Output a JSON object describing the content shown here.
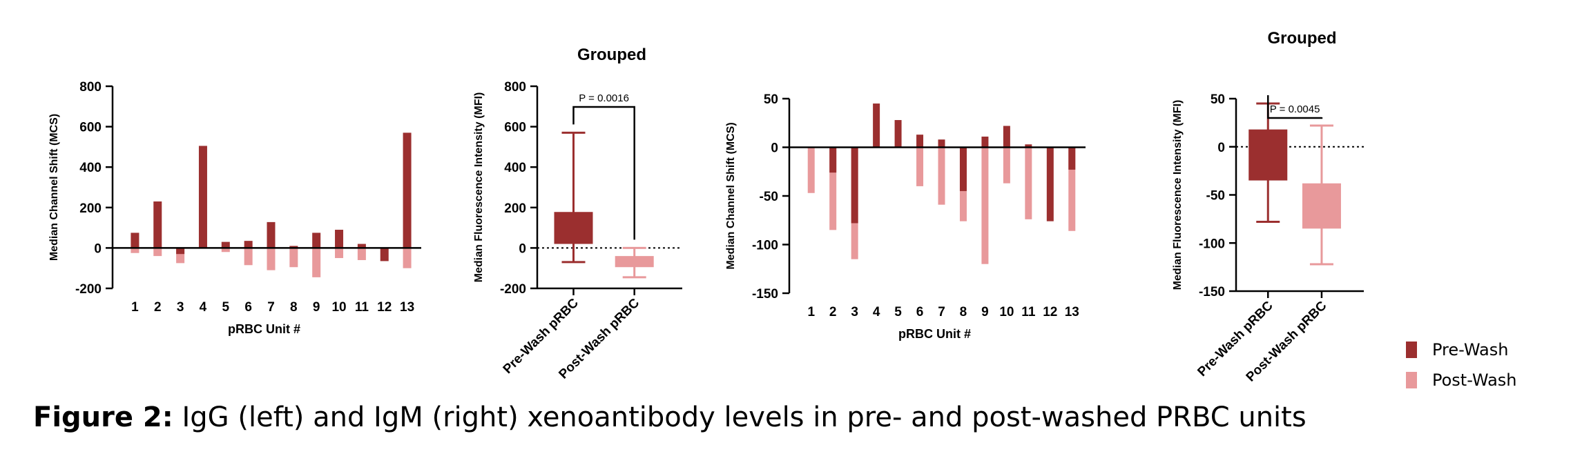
{
  "colors": {
    "pre": "#9b2f2f",
    "post": "#e8999b",
    "axis": "#000000"
  },
  "legend": {
    "items": [
      {
        "label": "Pre-Wash",
        "color": "#9b2f2f"
      },
      {
        "label": "Post-Wash",
        "color": "#e8999b"
      }
    ]
  },
  "caption": {
    "label": "Figure 2:",
    "text": " IgG (left) and IgM (right) xenoantibody levels in pre- and post-washed PRBC units"
  },
  "chart_data": [
    {
      "type": "bar",
      "title": "",
      "xlabel": "pRBC Unit #",
      "ylabel": "Median Channel Shift (MCS)",
      "ylim": [
        -200,
        800
      ],
      "yticks": [
        -200,
        0,
        200,
        400,
        600,
        800
      ],
      "categories": [
        "1",
        "2",
        "3",
        "4",
        "5",
        "6",
        "7",
        "8",
        "9",
        "10",
        "11",
        "12",
        "13"
      ],
      "series": [
        {
          "name": "Pre-Wash",
          "values": [
            75,
            230,
            -30,
            505,
            30,
            35,
            128,
            10,
            75,
            90,
            20,
            -65,
            570
          ]
        },
        {
          "name": "Post-Wash",
          "values": [
            -25,
            -40,
            -75,
            0,
            -20,
            -85,
            -110,
            -95,
            -145,
            -50,
            -60,
            0,
            -100
          ]
        }
      ]
    },
    {
      "type": "box",
      "title": "Grouped",
      "ylabel": "Median Fluorescence Intensity (MFI)",
      "ylim": [
        -200,
        800
      ],
      "yticks": [
        -200,
        0,
        200,
        400,
        600,
        800
      ],
      "categories": [
        "Pre-Wash pRBC",
        "Post-Wash pRBC"
      ],
      "boxes": [
        {
          "name": "Pre-Wash pRBC",
          "min": -70,
          "q1": 20,
          "q3": 178,
          "max": 570
        },
        {
          "name": "Post-Wash pRBC",
          "min": -145,
          "q1": -95,
          "q3": -40,
          "max": 0
        }
      ],
      "annotation": "P = 0.0016"
    },
    {
      "type": "bar",
      "title": "",
      "xlabel": "pRBC Unit #",
      "ylabel": "Median Channel Shift (MCS)",
      "ylim": [
        -150,
        50
      ],
      "yticks": [
        -150,
        -100,
        -50,
        0,
        50
      ],
      "categories": [
        "1",
        "2",
        "3",
        "4",
        "5",
        "6",
        "7",
        "8",
        "9",
        "10",
        "11",
        "12",
        "13"
      ],
      "series": [
        {
          "name": "Pre-Wash",
          "values": [
            0,
            -26,
            -78,
            45,
            28,
            13,
            8,
            -45,
            11,
            22,
            3,
            -76,
            -23
          ]
        },
        {
          "name": "Post-Wash",
          "values": [
            -47,
            -85,
            -115,
            0,
            0,
            -40,
            -59,
            -76,
            -120,
            -37,
            -74,
            0,
            -86
          ]
        }
      ]
    },
    {
      "type": "box",
      "title": "Grouped",
      "ylabel": "Median Fluorescence Intensity (MFI)",
      "ylim": [
        -150,
        50
      ],
      "yticks": [
        -150,
        -100,
        -50,
        0,
        50
      ],
      "categories": [
        "Pre-Wash pRBC",
        "Post-Wash pRBC"
      ],
      "boxes": [
        {
          "name": "Pre-Wash pRBC",
          "min": -78,
          "q1": -35,
          "q3": 18,
          "max": 45
        },
        {
          "name": "Post-Wash pRBC",
          "min": -122,
          "q1": -85,
          "q3": -38,
          "max": 22
        }
      ],
      "annotation": "P = 0.0045"
    }
  ]
}
